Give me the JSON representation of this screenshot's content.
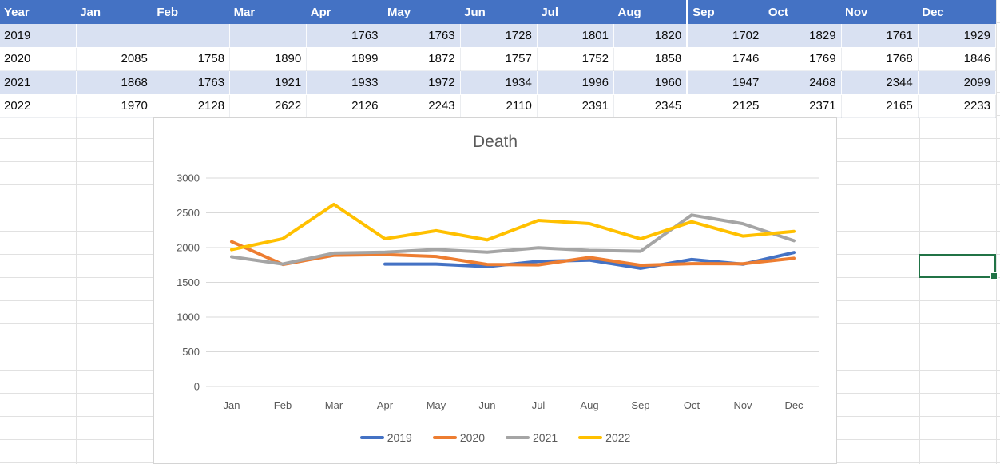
{
  "colors": {
    "header_bg": "#4472C4",
    "banded_row_bg": "#D9E1F2",
    "selection_border": "#217346",
    "chart_gridline": "#D9D9D9",
    "axis_text": "#595959",
    "header_text": "#FFFFFF"
  },
  "table": {
    "header": [
      "Year",
      "Jan",
      "Feb",
      "Mar",
      "Apr",
      "May",
      "Jun",
      "Jul",
      "Aug",
      "Sep",
      "Oct",
      "Nov",
      "Dec"
    ],
    "rows": [
      {
        "year": "2019",
        "banded": true,
        "values": [
          null,
          null,
          null,
          1763,
          1763,
          1728,
          1801,
          1820,
          1702,
          1829,
          1761,
          1929
        ]
      },
      {
        "year": "2020",
        "banded": false,
        "values": [
          2085,
          1758,
          1890,
          1899,
          1872,
          1757,
          1752,
          1858,
          1746,
          1769,
          1768,
          1846
        ]
      },
      {
        "year": "2021",
        "banded": true,
        "values": [
          1868,
          1763,
          1921,
          1933,
          1972,
          1934,
          1996,
          1960,
          1947,
          2468,
          2344,
          2099
        ]
      },
      {
        "year": "2022",
        "banded": false,
        "values": [
          1970,
          2128,
          2622,
          2126,
          2243,
          2110,
          2391,
          2345,
          2125,
          2371,
          2165,
          2233
        ]
      }
    ]
  },
  "chart_data": {
    "type": "line",
    "title": "Death",
    "xlabel": "",
    "ylabel": "",
    "x": [
      "Jan",
      "Feb",
      "Mar",
      "Apr",
      "May",
      "Jun",
      "Jul",
      "Aug",
      "Sep",
      "Oct",
      "Nov",
      "Dec"
    ],
    "y_ticks": [
      0,
      500,
      1000,
      1500,
      2000,
      2500,
      3000
    ],
    "ylim": [
      0,
      3000
    ],
    "grid": true,
    "legend_position": "bottom",
    "series": [
      {
        "name": "2019",
        "color": "#4472C4",
        "values": [
          null,
          null,
          null,
          1763,
          1763,
          1728,
          1801,
          1820,
          1702,
          1829,
          1761,
          1929
        ]
      },
      {
        "name": "2020",
        "color": "#ED7D31",
        "values": [
          2085,
          1758,
          1890,
          1899,
          1872,
          1757,
          1752,
          1858,
          1746,
          1769,
          1768,
          1846
        ]
      },
      {
        "name": "2021",
        "color": "#A5A5A5",
        "values": [
          1868,
          1763,
          1921,
          1933,
          1972,
          1934,
          1996,
          1960,
          1947,
          2468,
          2344,
          2099
        ]
      },
      {
        "name": "2022",
        "color": "#FFC000",
        "values": [
          1970,
          2128,
          2622,
          2126,
          2243,
          2110,
          2391,
          2345,
          2125,
          2371,
          2165,
          2233
        ]
      }
    ]
  },
  "selection": {
    "column": "Dec",
    "has_fill_handle": true
  }
}
